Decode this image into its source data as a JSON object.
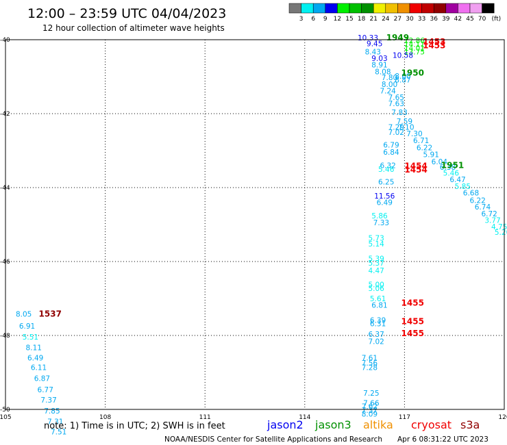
{
  "title": "12:00 – 23:59 UTC 04/04/2023",
  "subtitle": "12 hour collection of altimeter wave heights",
  "note": "note: 1) Time is in UTC; 2) SWH is in feet",
  "footer_left": "NOAA/NESDIS Center for Satellite Applications and Research",
  "footer_right": "Apr  6 08:31:22 UTC 2023",
  "colorbar": {
    "unit": "(ft)",
    "labels": [
      "3",
      "6",
      "9",
      "12",
      "15",
      "18",
      "21",
      "24",
      "27",
      "30",
      "33",
      "36",
      "39",
      "42",
      "45",
      "70"
    ],
    "colors": [
      "#777777",
      "#00f0f0",
      "#00a8f0",
      "#0000f0",
      "#00f000",
      "#00c000",
      "#009000",
      "#f0f000",
      "#f0c000",
      "#f09000",
      "#f00000",
      "#c00000",
      "#900000",
      "#a000a0",
      "#f070f0",
      "#f0a0f0",
      "#000000"
    ]
  },
  "satellites": [
    {
      "name": "jason2",
      "color": "#0000f0"
    },
    {
      "name": "jason3",
      "color": "#009000"
    },
    {
      "name": "altika",
      "color": "#f09000"
    },
    {
      "name": "cryosat",
      "color": "#f00000"
    },
    {
      "name": "s3a",
      "color": "#900000"
    }
  ],
  "chart_data": {
    "type": "scatter",
    "title": "12:00 – 23:59 UTC 04/04/2023",
    "subtitle": "12 hour collection of altimeter wave heights",
    "xlabel": "",
    "ylabel": "",
    "xlim": [
      105,
      120
    ],
    "ylim": [
      -50,
      -40
    ],
    "x_ticks": [
      "105",
      "108",
      "111",
      "114",
      "117",
      "120"
    ],
    "y_ticks": [
      "-40",
      "-42",
      "-44",
      "-46",
      "-48",
      "-50"
    ],
    "grid": true,
    "legend": "bottom",
    "swh_points": [
      {
        "x": 115.9,
        "y": -39.94,
        "v": "10.33",
        "c": "#0000f0"
      },
      {
        "x": 116.1,
        "y": -40.1,
        "v": "9.45",
        "c": "#0000f0"
      },
      {
        "x": 116.05,
        "y": -40.32,
        "v": "8.43",
        "c": "#00a8f0"
      },
      {
        "x": 116.25,
        "y": -40.5,
        "v": "9.03",
        "c": "#0000f0"
      },
      {
        "x": 116.25,
        "y": -40.68,
        "v": "8.91",
        "c": "#00a8f0"
      },
      {
        "x": 116.35,
        "y": -40.86,
        "v": "8.08",
        "c": "#00a8f0"
      },
      {
        "x": 116.55,
        "y": -41.02,
        "v": "7.80",
        "c": "#00a8f0"
      },
      {
        "x": 116.55,
        "y": -41.2,
        "v": "8.00",
        "c": "#00a8f0"
      },
      {
        "x": 116.5,
        "y": -41.38,
        "v": "7.24",
        "c": "#00a8f0"
      },
      {
        "x": 116.75,
        "y": -41.56,
        "v": "7.65",
        "c": "#00a8f0"
      },
      {
        "x": 116.75,
        "y": -41.72,
        "v": "7.63",
        "c": "#00a8f0"
      },
      {
        "x": 116.85,
        "y": -41.96,
        "v": "7.83",
        "c": "#00a8f0"
      },
      {
        "x": 117.0,
        "y": -42.2,
        "v": "7.59",
        "c": "#00a8f0"
      },
      {
        "x": 116.75,
        "y": -42.36,
        "v": "7.29",
        "c": "#00a8f0"
      },
      {
        "x": 117.05,
        "y": -42.36,
        "v": "7.10",
        "c": "#00a8f0"
      },
      {
        "x": 116.75,
        "y": -42.5,
        "v": "7.02",
        "c": "#00a8f0"
      },
      {
        "x": 117.3,
        "y": -42.54,
        "v": "7.30",
        "c": "#00a8f0"
      },
      {
        "x": 117.5,
        "y": -42.72,
        "v": "6.71",
        "c": "#00a8f0"
      },
      {
        "x": 116.6,
        "y": -42.84,
        "v": "6.79",
        "c": "#00a8f0"
      },
      {
        "x": 117.6,
        "y": -42.92,
        "v": "6.22",
        "c": "#00a8f0"
      },
      {
        "x": 116.6,
        "y": -43.04,
        "v": "6.84",
        "c": "#00a8f0"
      },
      {
        "x": 117.8,
        "y": -43.1,
        "v": "5.91",
        "c": "#00a8f0"
      },
      {
        "x": 118.05,
        "y": -43.3,
        "v": "6.04",
        "c": "#00a8f0"
      },
      {
        "x": 116.5,
        "y": -43.4,
        "v": "6.32",
        "c": "#00a8f0"
      },
      {
        "x": 118.3,
        "y": -43.44,
        "v": "6.38",
        "c": "#00a8f0"
      },
      {
        "x": 116.45,
        "y": -43.5,
        "v": "5.46",
        "c": "#00f0f0"
      },
      {
        "x": 118.4,
        "y": -43.6,
        "v": "5.46",
        "c": "#00f0f0"
      },
      {
        "x": 118.6,
        "y": -43.78,
        "v": "6.47",
        "c": "#00a8f0"
      },
      {
        "x": 116.45,
        "y": -43.84,
        "v": "6.25",
        "c": "#00a8f0"
      },
      {
        "x": 118.75,
        "y": -43.96,
        "v": "5.85",
        "c": "#00f0f0"
      },
      {
        "x": 119.0,
        "y": -44.14,
        "v": "6.68",
        "c": "#00a8f0"
      },
      {
        "x": 116.4,
        "y": -44.22,
        "v": "11.56",
        "c": "#0000f0"
      },
      {
        "x": 119.2,
        "y": -44.34,
        "v": "6.22",
        "c": "#00a8f0"
      },
      {
        "x": 116.4,
        "y": -44.4,
        "v": "6.49",
        "c": "#00a8f0"
      },
      {
        "x": 119.35,
        "y": -44.52,
        "v": "6.74",
        "c": "#00a8f0"
      },
      {
        "x": 119.55,
        "y": -44.7,
        "v": "6.72",
        "c": "#00a8f0"
      },
      {
        "x": 116.25,
        "y": -44.76,
        "v": "5.86",
        "c": "#00f0f0"
      },
      {
        "x": 119.65,
        "y": -44.88,
        "v": "3.77",
        "c": "#00f0f0"
      },
      {
        "x": 116.3,
        "y": -44.94,
        "v": "7.33",
        "c": "#00a8f0"
      },
      {
        "x": 119.85,
        "y": -45.06,
        "v": "4.75",
        "c": "#00f0f0"
      },
      {
        "x": 119.95,
        "y": -45.2,
        "v": "5.20",
        "c": "#00f0f0"
      },
      {
        "x": 116.15,
        "y": -45.36,
        "v": "5.73",
        "c": "#00f0f0"
      },
      {
        "x": 116.15,
        "y": -45.52,
        "v": "5.14",
        "c": "#00f0f0"
      },
      {
        "x": 116.15,
        "y": -45.92,
        "v": "5.39",
        "c": "#00f0f0"
      },
      {
        "x": 116.15,
        "y": -46.04,
        "v": "5.37",
        "c": "#00f0f0"
      },
      {
        "x": 116.15,
        "y": -46.24,
        "v": "4.47",
        "c": "#00f0f0"
      },
      {
        "x": 116.15,
        "y": -46.62,
        "v": "5.00",
        "c": "#00f0f0"
      },
      {
        "x": 116.15,
        "y": -46.72,
        "v": "5.06",
        "c": "#00f0f0"
      },
      {
        "x": 116.2,
        "y": -47.0,
        "v": "5.61",
        "c": "#00f0f0"
      },
      {
        "x": 116.25,
        "y": -47.18,
        "v": "6.81",
        "c": "#00a8f0"
      },
      {
        "x": 116.2,
        "y": -47.58,
        "v": "6.39",
        "c": "#00a8f0"
      },
      {
        "x": 116.2,
        "y": -47.68,
        "v": "6.31",
        "c": "#00a8f0"
      },
      {
        "x": 116.15,
        "y": -47.96,
        "v": "6.37",
        "c": "#00a8f0"
      },
      {
        "x": 116.15,
        "y": -48.16,
        "v": "7.02",
        "c": "#00a8f0"
      },
      {
        "x": 115.95,
        "y": -48.6,
        "v": "7.61",
        "c": "#00a8f0"
      },
      {
        "x": 115.95,
        "y": -48.74,
        "v": "7.56",
        "c": "#00a8f0"
      },
      {
        "x": 115.95,
        "y": -48.86,
        "v": "7.28",
        "c": "#00a8f0"
      },
      {
        "x": 116.0,
        "y": -49.56,
        "v": "7.25",
        "c": "#00a8f0"
      },
      {
        "x": 116.0,
        "y": -49.82,
        "v": "7.66",
        "c": "#00a8f0"
      },
      {
        "x": 115.95,
        "y": -49.92,
        "v": "7.62",
        "c": "#00a8f0"
      },
      {
        "x": 115.95,
        "y": -50.02,
        "v": "7.37",
        "c": "#00a8f0"
      },
      {
        "x": 115.95,
        "y": -50.12,
        "v": "8.09",
        "c": "#00a8f0"
      },
      {
        "x": 117.3,
        "y": -40.02,
        "v": "12.86",
        "c": "#00f000"
      },
      {
        "x": 117.3,
        "y": -40.12,
        "v": "14.11",
        "c": "#00f000"
      },
      {
        "x": 117.3,
        "y": -40.22,
        "v": "14.01",
        "c": "#00f000"
      },
      {
        "x": 117.3,
        "y": -40.32,
        "v": "13.75",
        "c": "#00f000"
      },
      {
        "x": 116.95,
        "y": -40.42,
        "v": "10.58",
        "c": "#0000f0"
      },
      {
        "x": 116.95,
        "y": -40.98,
        "v": "8.60",
        "c": "#00a8f0"
      },
      {
        "x": 116.95,
        "y": -41.08,
        "v": "8.87",
        "c": "#00a8f0"
      },
      {
        "x": 105.55,
        "y": -47.42,
        "v": "8.05",
        "c": "#00a8f0"
      },
      {
        "x": 105.65,
        "y": -47.74,
        "v": "6.91",
        "c": "#00a8f0"
      },
      {
        "x": 105.75,
        "y": -48.04,
        "v": "5.51",
        "c": "#00f0f0"
      },
      {
        "x": 105.85,
        "y": -48.32,
        "v": "8.11",
        "c": "#00a8f0"
      },
      {
        "x": 105.9,
        "y": -48.6,
        "v": "6.49",
        "c": "#00a8f0"
      },
      {
        "x": 106.0,
        "y": -48.86,
        "v": "6.11",
        "c": "#00a8f0"
      },
      {
        "x": 106.1,
        "y": -49.16,
        "v": "6.87",
        "c": "#00a8f0"
      },
      {
        "x": 106.2,
        "y": -49.46,
        "v": "6.77",
        "c": "#00a8f0"
      },
      {
        "x": 106.3,
        "y": -49.74,
        "v": "7.37",
        "c": "#00a8f0"
      },
      {
        "x": 106.4,
        "y": -50.04,
        "v": "7.85",
        "c": "#00a8f0"
      },
      {
        "x": 106.5,
        "y": -50.32,
        "v": "7.31",
        "c": "#00a8f0"
      },
      {
        "x": 106.6,
        "y": -50.6,
        "v": "7.51",
        "c": "#00a8f0"
      }
    ],
    "time_labels": [
      {
        "x": 116.45,
        "y": -39.94,
        "v": "1949",
        "c": "#009000"
      },
      {
        "x": 117.55,
        "y": -40.06,
        "v": "1453",
        "c": "#f00000"
      },
      {
        "x": 117.55,
        "y": -40.16,
        "v": "1453",
        "c": "#f00000"
      },
      {
        "x": 116.9,
        "y": -40.9,
        "v": "1950",
        "c": "#009000"
      },
      {
        "x": 118.1,
        "y": -43.4,
        "v": "1951",
        "c": "#009000"
      },
      {
        "x": 117.0,
        "y": -43.42,
        "v": "1454",
        "c": "#f00000"
      },
      {
        "x": 117.0,
        "y": -43.52,
        "v": "1454",
        "c": "#f00000"
      },
      {
        "x": 106.0,
        "y": -47.42,
        "v": "1537",
        "c": "#900000"
      },
      {
        "x": 116.9,
        "y": -47.12,
        "v": "1455",
        "c": "#f00000"
      },
      {
        "x": 116.9,
        "y": -47.62,
        "v": "1455",
        "c": "#f00000"
      },
      {
        "x": 116.9,
        "y": -47.94,
        "v": "1455",
        "c": "#f00000"
      }
    ]
  }
}
